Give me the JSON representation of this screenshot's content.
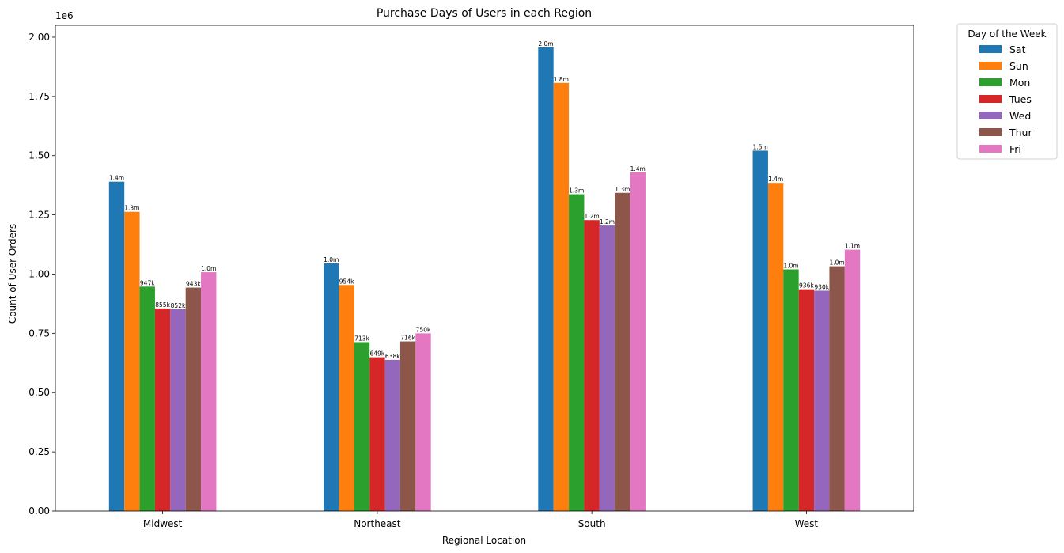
{
  "chart_data": {
    "type": "bar",
    "title": "Purchase Days of Users in each Region",
    "xlabel": "Regional Location",
    "ylabel": "Count of User Orders",
    "y_multiplier_label": "1e6",
    "categories": [
      "Midwest",
      "Northeast",
      "South",
      "West"
    ],
    "ylim": [
      0,
      2050000
    ],
    "yticks": [
      0,
      250000,
      500000,
      750000,
      1000000,
      1250000,
      1500000,
      1750000,
      2000000
    ],
    "ytick_labels": [
      "0.00",
      "0.25",
      "0.50",
      "0.75",
      "1.00",
      "1.25",
      "1.50",
      "1.75",
      "2.00"
    ],
    "grid": false,
    "legend": {
      "title": "Day of the Week",
      "placement": "outside-top-right"
    },
    "series": [
      {
        "name": "Sat",
        "color": "#1f77b4",
        "values": [
          1390000,
          1045000,
          1957000,
          1521000
        ],
        "labels": [
          "1.4m",
          "1.0m",
          "2.0m",
          "1.5m"
        ]
      },
      {
        "name": "Sun",
        "color": "#ff7f0e",
        "values": [
          1263000,
          954000,
          1807000,
          1385000
        ],
        "labels": [
          "1.3m",
          "954k",
          "1.8m",
          "1.4m"
        ]
      },
      {
        "name": "Mon",
        "color": "#2ca02c",
        "values": [
          947000,
          713000,
          1337000,
          1020000
        ],
        "labels": [
          "947k",
          "713k",
          "1.3m",
          "1.0m"
        ]
      },
      {
        "name": "Tues",
        "color": "#d62728",
        "values": [
          855000,
          649000,
          1228000,
          936000
        ],
        "labels": [
          "855k",
          "649k",
          "1.2m",
          "936k"
        ]
      },
      {
        "name": "Wed",
        "color": "#9467bd",
        "values": [
          852000,
          638000,
          1205000,
          930000
        ],
        "labels": [
          "852k",
          "638k",
          "1.2m",
          "930k"
        ]
      },
      {
        "name": "Thur",
        "color": "#8c564b",
        "values": [
          943000,
          716000,
          1343000,
          1033000
        ],
        "labels": [
          "943k",
          "716k",
          "1.3m",
          "1.0m"
        ]
      },
      {
        "name": "Fri",
        "color": "#e377c2",
        "values": [
          1008000,
          750000,
          1429000,
          1103000
        ],
        "labels": [
          "1.0m",
          "750k",
          "1.4m",
          "1.1m"
        ]
      }
    ]
  }
}
